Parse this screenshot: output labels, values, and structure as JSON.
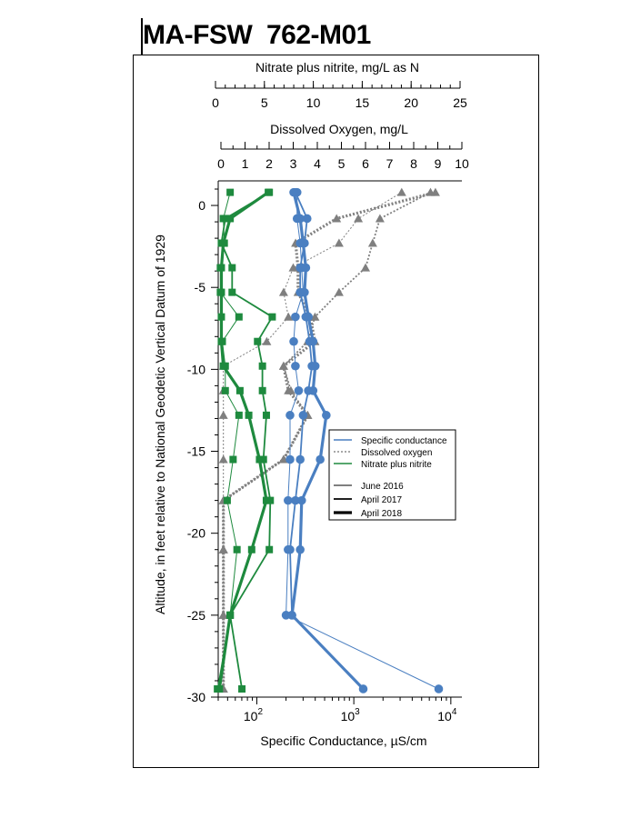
{
  "page": {
    "title": "MA-FSW  762-M01"
  },
  "chart_data": {
    "type": "line",
    "orientation": "vertical-profile",
    "axes": {
      "y": {
        "label": "Altitude, in feet relative to National Geodetic Vertical Datum of 1929",
        "range": [
          -30,
          1.5
        ],
        "ticks": [
          0,
          -5,
          -10,
          -15,
          -20,
          -25,
          -30
        ]
      },
      "conductance": {
        "label": "Specific Conductance, µS/cm",
        "scale": "log",
        "range": [
          40,
          13000
        ],
        "tick_labels": [
          {
            "value": 100,
            "base": "10",
            "exp": "2"
          },
          {
            "value": 1000,
            "base": "10",
            "exp": "3"
          },
          {
            "value": 10000,
            "base": "10",
            "exp": "4"
          }
        ]
      },
      "dissolved_oxygen": {
        "label": "Dissolved Oxygen, mg/L",
        "range": [
          0,
          10
        ],
        "ticks": [
          "0",
          "1",
          "2",
          "3",
          "4",
          "5",
          "6",
          "7",
          "8",
          "9",
          "10"
        ]
      },
      "nitrate": {
        "label": "Nitrate plus nitrite, mg/L as N",
        "range": [
          0,
          25
        ],
        "ticks": [
          "0",
          "5",
          "10",
          "15",
          "20",
          "25"
        ]
      }
    },
    "legend": {
      "position": "right-middle",
      "parameters": [
        {
          "label": "Specific conductance",
          "color": "#4a7fc1",
          "dash": "solid"
        },
        {
          "label": "Dissolved oxygen",
          "color": "#8c8c8c",
          "dash": "dotted"
        },
        {
          "label": "Nitrate plus nitrite",
          "color": "#1e8a3e",
          "dash": "solid"
        }
      ],
      "dates": [
        {
          "label": "June 2016",
          "width": 1
        },
        {
          "label": "April 2017",
          "width": 1.8
        },
        {
          "label": "April 2018",
          "width": 3.2
        }
      ]
    },
    "colors": {
      "conductance": "#4a7fc1",
      "oxygen": "#7f7f7f",
      "nitrate": "#1e8a3e"
    },
    "series": [
      {
        "parameter": "conductance",
        "date": "June 2016",
        "points": [
          [
            260,
            0.8
          ],
          [
            260,
            -0.8
          ],
          [
            280,
            -2.3
          ],
          [
            290,
            -3.8
          ],
          [
            300,
            -5.3
          ],
          [
            250,
            -6.8
          ],
          [
            240,
            -8.3
          ],
          [
            250,
            -9.8
          ],
          [
            270,
            -11.3
          ],
          [
            220,
            -12.8
          ],
          [
            220,
            -15.5
          ],
          [
            210,
            -18
          ],
          [
            210,
            -21
          ],
          [
            200,
            -25
          ],
          [
            7500,
            -29.5
          ]
        ]
      },
      {
        "parameter": "conductance",
        "date": "April 2017",
        "points": [
          [
            250,
            0.8
          ],
          [
            330,
            -0.8
          ],
          [
            310,
            -2.3
          ],
          [
            280,
            -3.8
          ],
          [
            280,
            -5.3
          ],
          [
            320,
            -6.8
          ],
          [
            350,
            -8.3
          ],
          [
            370,
            -9.8
          ],
          [
            340,
            -11.3
          ],
          [
            300,
            -12.8
          ],
          [
            280,
            -15.5
          ],
          [
            250,
            -18
          ],
          [
            220,
            -21
          ],
          [
            230,
            -25
          ]
        ]
      },
      {
        "parameter": "conductance",
        "date": "April 2018",
        "points": [
          [
            240,
            0.8
          ],
          [
            280,
            -0.8
          ],
          [
            300,
            -2.3
          ],
          [
            320,
            -3.8
          ],
          [
            310,
            -5.3
          ],
          [
            340,
            -6.8
          ],
          [
            380,
            -8.3
          ],
          [
            400,
            -9.8
          ],
          [
            380,
            -11.3
          ],
          [
            520,
            -12.8
          ],
          [
            450,
            -15.5
          ],
          [
            290,
            -18
          ],
          [
            280,
            -21
          ],
          [
            230,
            -25
          ],
          [
            1250,
            -29.5
          ]
        ]
      },
      {
        "parameter": "oxygen",
        "date": "June 2016",
        "points": [
          [
            7.5,
            0.8
          ],
          [
            5.7,
            -0.8
          ],
          [
            4.9,
            -2.3
          ],
          [
            3.0,
            -3.8
          ],
          [
            2.6,
            -5.3
          ],
          [
            2.8,
            -6.8
          ],
          [
            1.9,
            -8.3
          ],
          [
            0.1,
            -9.8
          ],
          [
            0.1,
            -11.3
          ],
          [
            0.1,
            -12.8
          ],
          [
            0.1,
            -15.5
          ],
          [
            0.1,
            -18
          ],
          [
            0.1,
            -21
          ],
          [
            0.1,
            -25
          ],
          [
            0.1,
            -29.5
          ]
        ]
      },
      {
        "parameter": "oxygen",
        "date": "April 2017",
        "points": [
          [
            8.7,
            0.8
          ],
          [
            6.6,
            -0.8
          ],
          [
            6.3,
            -2.3
          ],
          [
            6.0,
            -3.8
          ],
          [
            4.9,
            -5.3
          ],
          [
            3.9,
            -6.8
          ],
          [
            3.6,
            -8.3
          ],
          [
            2.6,
            -9.8
          ],
          [
            2.9,
            -11.3
          ],
          [
            3.6,
            -12.8
          ],
          [
            2.6,
            -15.5
          ],
          [
            0.1,
            -18
          ],
          [
            0.1,
            -21
          ],
          [
            0.1,
            -25
          ],
          [
            0.1,
            -29.5
          ]
        ]
      },
      {
        "parameter": "oxygen",
        "date": "April 2018",
        "points": [
          [
            8.9,
            0.8
          ],
          [
            4.8,
            -0.8
          ],
          [
            3.1,
            -2.3
          ],
          [
            3.2,
            -3.8
          ],
          [
            3.2,
            -5.3
          ],
          [
            3.7,
            -6.8
          ],
          [
            3.9,
            -8.3
          ],
          [
            2.6,
            -9.8
          ],
          [
            2.8,
            -11.3
          ],
          [
            3.6,
            -12.8
          ],
          [
            2.6,
            -15.5
          ],
          [
            0.1,
            -18
          ],
          [
            0.1,
            -21
          ],
          [
            0.1,
            -25
          ],
          [
            0.1,
            -29.5
          ]
        ]
      },
      {
        "parameter": "nitrate",
        "date": "June 2016",
        "points": [
          [
            1.5,
            0.8
          ],
          [
            0.8,
            -0.8
          ],
          [
            0.9,
            -2.3
          ],
          [
            0.5,
            -3.8
          ],
          [
            0.5,
            -5.3
          ],
          [
            2.4,
            -6.8
          ],
          [
            0.7,
            -8.3
          ],
          [
            1.0,
            -9.8
          ],
          [
            1.0,
            -11.3
          ],
          [
            2.4,
            -12.8
          ],
          [
            1.8,
            -15.5
          ],
          [
            1.2,
            -18
          ],
          [
            2.2,
            -21
          ],
          [
            1.5,
            -25
          ],
          [
            0.2,
            -29.5
          ]
        ]
      },
      {
        "parameter": "nitrate",
        "date": "April 2017",
        "points": [
          [
            5.5,
            0.8
          ],
          [
            1.0,
            -0.8
          ],
          [
            0.6,
            -2.3
          ],
          [
            1.7,
            -3.8
          ],
          [
            1.7,
            -5.3
          ],
          [
            5.8,
            -6.8
          ],
          [
            4.3,
            -8.3
          ],
          [
            4.8,
            -9.8
          ],
          [
            4.8,
            -11.3
          ],
          [
            5.2,
            -12.8
          ],
          [
            4.9,
            -15.5
          ],
          [
            5.6,
            -18
          ],
          [
            5.5,
            -21
          ],
          [
            1.5,
            -25
          ],
          [
            2.7,
            -29.5
          ]
        ]
      },
      {
        "parameter": "nitrate",
        "date": "April 2018",
        "points": [
          [
            5.4,
            0.8
          ],
          [
            1.5,
            -0.8
          ],
          [
            0.8,
            -2.3
          ],
          [
            0.6,
            -3.8
          ],
          [
            0.6,
            -5.3
          ],
          [
            0.6,
            -6.8
          ],
          [
            0.6,
            -8.3
          ],
          [
            0.8,
            -9.8
          ],
          [
            2.5,
            -11.3
          ],
          [
            3.4,
            -12.8
          ],
          [
            4.5,
            -15.5
          ],
          [
            5.2,
            -18
          ],
          [
            3.7,
            -21
          ],
          [
            1.5,
            -25
          ],
          [
            0.4,
            -29.5
          ]
        ]
      }
    ]
  }
}
